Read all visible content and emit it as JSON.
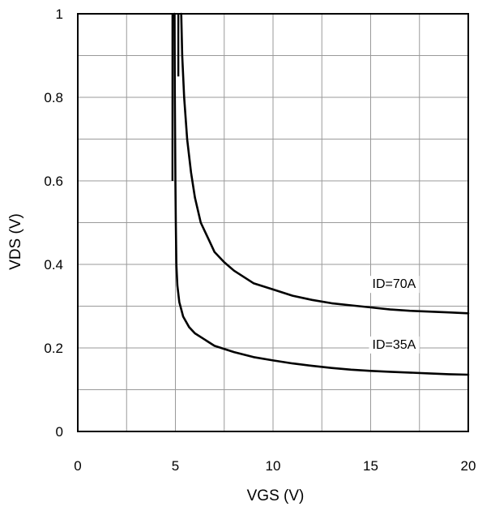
{
  "chart_data": {
    "type": "line",
    "title": "",
    "xlabel": "VGS (V)",
    "ylabel": "VDS (V)",
    "xlim": [
      0,
      20
    ],
    "ylim": [
      0,
      1
    ],
    "x_ticks": [
      "0",
      "5",
      "10",
      "15",
      "20"
    ],
    "y_ticks": [
      "0",
      "0.2",
      "0.4",
      "0.6",
      "0.8",
      "1"
    ],
    "grid": true,
    "x_grid_step": 2.5,
    "y_grid_step": 0.1,
    "colors": {
      "line": "#000000",
      "grid": "#9a9a9a",
      "frame": "#000000"
    },
    "series": [
      {
        "name": "ID=70A",
        "points": [
          [
            5.3,
            1.0
          ],
          [
            5.35,
            0.9
          ],
          [
            5.45,
            0.8
          ],
          [
            5.6,
            0.7
          ],
          [
            5.8,
            0.62
          ],
          [
            6.0,
            0.56
          ],
          [
            6.3,
            0.5
          ],
          [
            6.7,
            0.46
          ],
          [
            7.0,
            0.43
          ],
          [
            7.5,
            0.405
          ],
          [
            8.0,
            0.385
          ],
          [
            9.0,
            0.355
          ],
          [
            10.0,
            0.34
          ],
          [
            11.0,
            0.325
          ],
          [
            12.0,
            0.315
          ],
          [
            13.0,
            0.307
          ],
          [
            14.0,
            0.302
          ],
          [
            15.0,
            0.297
          ],
          [
            16.0,
            0.292
          ],
          [
            17.0,
            0.289
          ],
          [
            18.0,
            0.287
          ],
          [
            19.0,
            0.285
          ],
          [
            20.0,
            0.283
          ]
        ]
      },
      {
        "name": "ID=35A",
        "points": [
          [
            4.95,
            1.0
          ],
          [
            4.97,
            0.8
          ],
          [
            5.0,
            0.6
          ],
          [
            5.02,
            0.5
          ],
          [
            5.05,
            0.4
          ],
          [
            5.1,
            0.35
          ],
          [
            5.2,
            0.31
          ],
          [
            5.4,
            0.275
          ],
          [
            5.7,
            0.25
          ],
          [
            6.0,
            0.235
          ],
          [
            6.5,
            0.22
          ],
          [
            7.0,
            0.205
          ],
          [
            8.0,
            0.19
          ],
          [
            9.0,
            0.178
          ],
          [
            10.0,
            0.17
          ],
          [
            11.0,
            0.163
          ],
          [
            12.0,
            0.157
          ],
          [
            13.0,
            0.152
          ],
          [
            14.0,
            0.148
          ],
          [
            15.0,
            0.145
          ],
          [
            16.0,
            0.143
          ],
          [
            17.0,
            0.141
          ],
          [
            18.0,
            0.139
          ],
          [
            19.0,
            0.137
          ],
          [
            20.0,
            0.136
          ]
        ]
      }
    ],
    "vertical_strokes": [
      {
        "x": 4.85,
        "y_from": 1.0,
        "y_to": 0.6
      },
      {
        "x": 5.15,
        "y_from": 1.0,
        "y_to": 0.85
      }
    ],
    "annotations": [
      {
        "text": "ID=70A",
        "x": 16.2,
        "y": 0.355
      },
      {
        "text": "ID=35A",
        "x": 16.2,
        "y": 0.21
      }
    ]
  }
}
